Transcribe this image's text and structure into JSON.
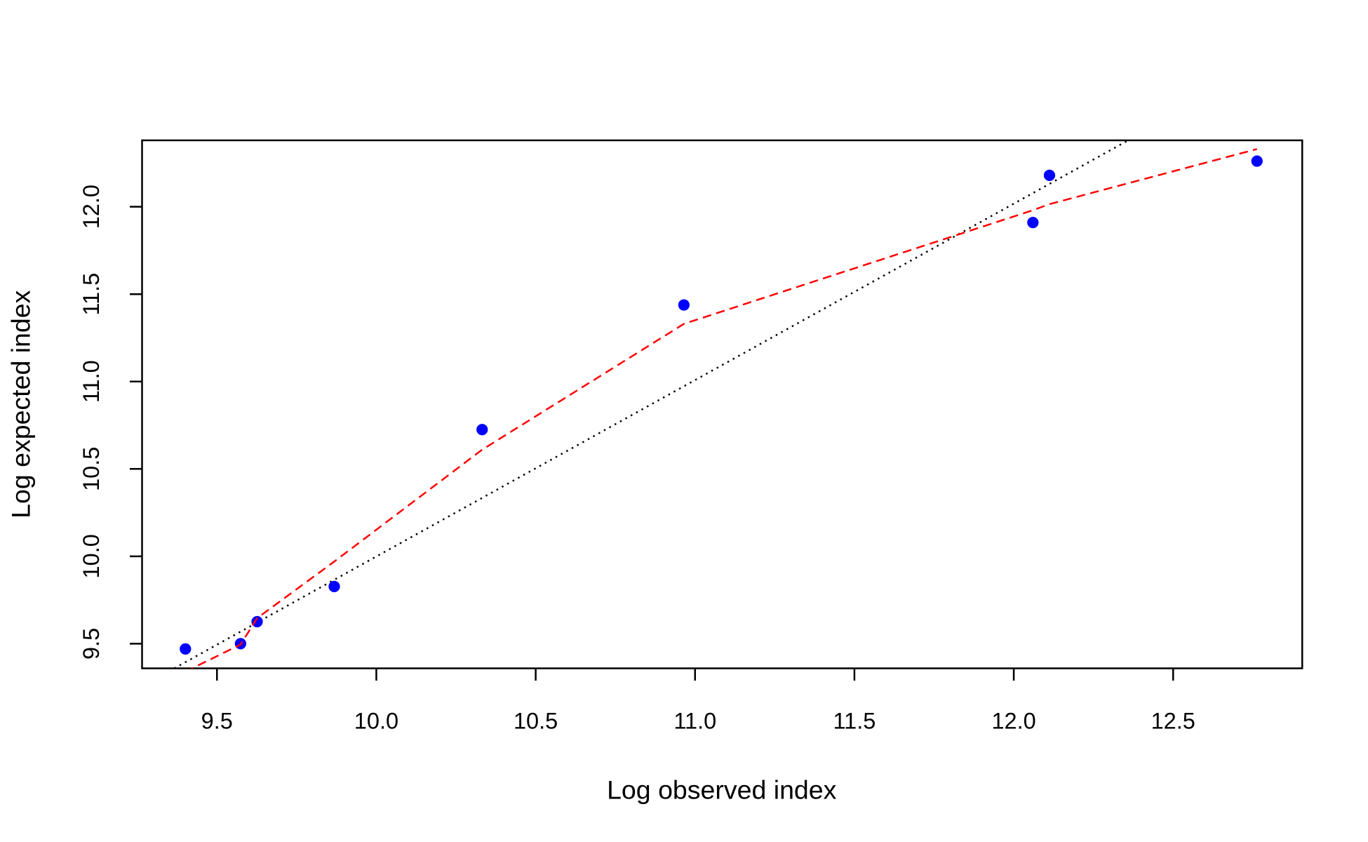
{
  "chart_data": {
    "type": "scatter",
    "x_label": "Log observed index",
    "y_label": "Log expected index",
    "xlim": [
      9.265,
      12.905
    ],
    "ylim": [
      9.359,
      12.38
    ],
    "xticks": [
      {
        "value": 9.5,
        "label": "9.5"
      },
      {
        "value": 10,
        "label": "10.0"
      },
      {
        "value": 10.5,
        "label": "10.5"
      },
      {
        "value": 11,
        "label": "11.0"
      },
      {
        "value": 11.5,
        "label": "11.5"
      },
      {
        "value": 12,
        "label": "12.0"
      },
      {
        "value": 12.5,
        "label": "12.5"
      }
    ],
    "yticks": [
      {
        "value": 9.5,
        "label": "9.5"
      },
      {
        "value": 10,
        "label": "10.0"
      },
      {
        "value": 10.5,
        "label": "10.5"
      },
      {
        "value": 11,
        "label": "11.0"
      },
      {
        "value": 11.5,
        "label": "11.5"
      },
      {
        "value": 12,
        "label": "12.0"
      }
    ],
    "x": [
      9.401,
      9.574,
      9.626,
      9.868,
      10.332,
      10.965,
      12.06,
      12.112,
      12.763
    ],
    "series": [
      {
        "type": "scatter",
        "color": "#0000ff",
        "values": [
          9.47,
          9.5,
          9.626,
          9.827,
          10.725,
          11.438,
          11.91,
          12.18,
          12.261
        ]
      },
      {
        "type": "line",
        "style": "dashed",
        "color": "#ff0000",
        "values": [
          9.34,
          9.495,
          9.646,
          9.97,
          10.61,
          11.33,
          11.98,
          12.015,
          12.33
        ]
      }
    ],
    "reference_line": {
      "color": "#000000",
      "style": "dotted",
      "x": [
        9.366,
        12.359
      ],
      "y": [
        9.359,
        12.38
      ]
    }
  }
}
